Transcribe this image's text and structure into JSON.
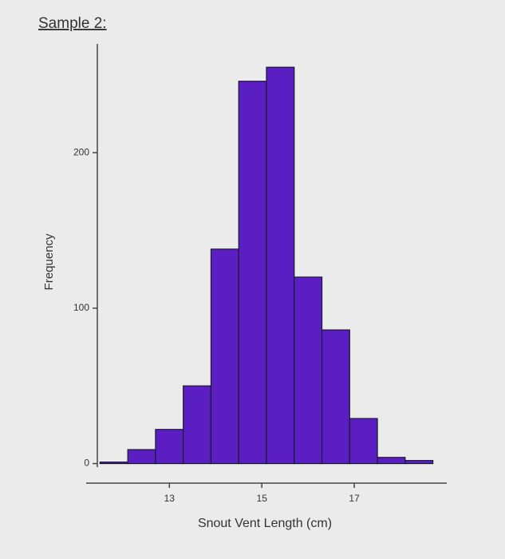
{
  "chart_data": {
    "type": "histogram",
    "title": "Sample 2:",
    "x_label": "Snout Vent Length (cm)",
    "y_label": "Frequency",
    "bins": [
      11.5,
      12.1,
      12.7,
      13.3,
      13.9,
      14.5,
      15.1,
      15.7,
      16.3,
      16.9,
      17.5,
      18.1,
      18.7
    ],
    "values": [
      1,
      9,
      22,
      50,
      138,
      246,
      255,
      120,
      86,
      29,
      4,
      2
    ],
    "color": "#5a1ec2",
    "xlim": [
      11.2,
      19
    ],
    "ylim": [
      -10,
      270
    ],
    "xticks": [
      13,
      15,
      17
    ],
    "yticks": [
      0,
      100,
      200
    ]
  }
}
